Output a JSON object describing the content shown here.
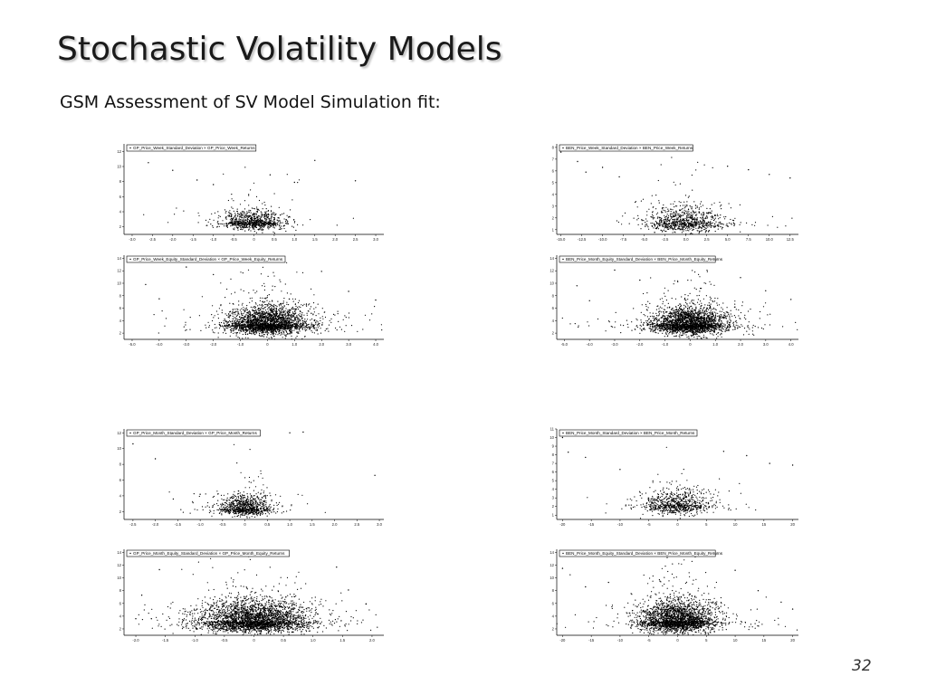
{
  "slide": {
    "title": "Stochastic Volatility Models",
    "subtitle": "GSM Assessment of SV Model Simulation fit:",
    "page_number": "32"
  },
  "chart_data": [
    {
      "type": "scatter",
      "legend": "GP_Price_Week_Standard_Deviation × GP_Price_Week_Returns",
      "x_ticks": [
        "-3.0",
        "-2.5",
        "-2.0",
        "-1.5",
        "-1.0",
        "-0.5",
        "0",
        "0.5",
        "1.0",
        "1.5",
        "2.0",
        "2.5",
        "3.0"
      ],
      "y_ticks": [
        "2",
        "4",
        "6",
        "8",
        "10",
        "12"
      ],
      "xlim": [
        -3.2,
        3.2
      ],
      "ylim": [
        1,
        13
      ],
      "spread_x": 0.38,
      "center_y": 2.6,
      "spread_y": 0.9,
      "n_points": 900,
      "points": [
        [
          -2.6,
          10.5
        ],
        [
          -2.0,
          9.5
        ],
        [
          -1.4,
          8.2
        ],
        [
          -1.0,
          7.6
        ],
        [
          0.4,
          8.9
        ],
        [
          1.0,
          7.9
        ],
        [
          1.5,
          10.8
        ],
        [
          2.5,
          8.1
        ]
      ]
    },
    {
      "type": "scatter",
      "legend": "BEN_Price_Week_Standard_Deviation × BEN_Price_Week_Returns",
      "x_ticks": [
        "-15.0",
        "-12.5",
        "-10.0",
        "-7.5",
        "-5.0",
        "-2.5",
        "0.0",
        "2.5",
        "5.0",
        "7.5",
        "10.0",
        "12.5"
      ],
      "y_ticks": [
        "1",
        "2",
        "3",
        "4",
        "5",
        "6",
        "7",
        "8"
      ],
      "xlim": [
        -15.5,
        13.5
      ],
      "ylim": [
        0.6,
        8.3
      ],
      "spread_x": 2.4,
      "center_y": 1.6,
      "spread_y": 0.8,
      "n_points": 900,
      "points": [
        [
          -15.0,
          7.6
        ],
        [
          -13.0,
          6.8
        ],
        [
          -12.0,
          5.9
        ],
        [
          -10.0,
          6.3
        ],
        [
          -8.0,
          5.5
        ],
        [
          5.0,
          6.4
        ],
        [
          7.5,
          6.1
        ],
        [
          10.0,
          5.7
        ],
        [
          12.5,
          5.4
        ]
      ]
    },
    {
      "type": "scatter",
      "legend": "GP_Price_Week_Equity_Standard_Deviation × GP_Price_Week_Equity_Returns",
      "x_ticks": [
        "-5.0",
        "-4.0",
        "-3.0",
        "-2.0",
        "-1.0",
        "0",
        "1.0",
        "2.0",
        "3.0",
        "4.0"
      ],
      "y_ticks": [
        "2",
        "4",
        "6",
        "8",
        "10",
        "12",
        "14"
      ],
      "xlim": [
        -5.3,
        4.3
      ],
      "ylim": [
        1,
        14.5
      ],
      "spread_x": 0.75,
      "center_y": 3.4,
      "spread_y": 1.5,
      "n_points": 2600,
      "points": [
        [
          -4.5,
          9.8
        ],
        [
          -4.0,
          7.5
        ],
        [
          -3.0,
          12.6
        ],
        [
          -2.0,
          11.4
        ],
        [
          2.0,
          11.9
        ],
        [
          3.0,
          8.7
        ],
        [
          4.0,
          7.3
        ]
      ]
    },
    {
      "type": "scatter",
      "legend": "BEN_Price_Month_Equity_Standard_Deviation × BEN_Price_Month_Equity_Returns",
      "x_ticks": [
        "-5.0",
        "-4.0",
        "-3.0",
        "-2.0",
        "-1.0",
        "0",
        "1.0",
        "2.0",
        "3.0",
        "4.0"
      ],
      "y_ticks": [
        "2",
        "4",
        "6",
        "8",
        "10",
        "12",
        "14"
      ],
      "xlim": [
        -5.3,
        4.3
      ],
      "ylim": [
        1,
        14.5
      ],
      "spread_x": 0.75,
      "center_y": 3.4,
      "spread_y": 1.5,
      "n_points": 2600,
      "points": [
        [
          -4.5,
          9.6
        ],
        [
          -4.0,
          7.2
        ],
        [
          -3.0,
          12.1
        ],
        [
          -2.0,
          10.5
        ],
        [
          2.0,
          10.9
        ],
        [
          3.0,
          8.8
        ],
        [
          4.0,
          7.4
        ]
      ]
    },
    {
      "type": "scatter",
      "legend": "GP_Price_Month_Standard_Deviation × GP_Price_Month_Returns",
      "x_ticks": [
        "-2.5",
        "-2.0",
        "-1.5",
        "-1.0",
        "-0.5",
        "0",
        "0.5",
        "1.0",
        "1.5",
        "2.0",
        "2.5",
        "3.0"
      ],
      "y_ticks": [
        "2",
        "4",
        "6",
        "8",
        "10",
        "12"
      ],
      "xlim": [
        -2.7,
        3.1
      ],
      "ylim": [
        1,
        12.5
      ],
      "spread_x": 0.3,
      "center_y": 2.4,
      "spread_y": 0.9,
      "n_points": 900,
      "points": [
        [
          -2.5,
          10.6
        ],
        [
          -2.0,
          8.7
        ],
        [
          -1.6,
          3.6
        ],
        [
          -1.0,
          4.2
        ],
        [
          1.0,
          12.0
        ],
        [
          1.3,
          12.1
        ],
        [
          2.9,
          6.6
        ]
      ]
    },
    {
      "type": "scatter",
      "legend": "BEN_Price_Month_Standard_Deviation × BEN_Price_Month_Returns",
      "x_ticks": [
        "-20",
        "-15",
        "-10",
        "-5",
        "0",
        "5",
        "10",
        "15",
        "20"
      ],
      "y_ticks": [
        "1",
        "2",
        "3",
        "4",
        "5",
        "6",
        "7",
        "8",
        "9",
        "10",
        "11"
      ],
      "xlim": [
        -21,
        21
      ],
      "ylim": [
        0.5,
        11
      ],
      "spread_x": 3.0,
      "center_y": 2.2,
      "spread_y": 1.0,
      "n_points": 800,
      "points": [
        [
          -20,
          10.0
        ],
        [
          -19,
          8.3
        ],
        [
          -16,
          7.7
        ],
        [
          -10,
          6.3
        ],
        [
          8,
          8.4
        ],
        [
          12,
          7.9
        ],
        [
          16,
          7.0
        ],
        [
          20,
          6.8
        ]
      ]
    },
    {
      "type": "scatter",
      "legend": "GP_Price_Month_Equity_Standard_Deviation × GP_Price_Month_Equity_Returns",
      "x_ticks": [
        "-2.0",
        "-1.5",
        "-1.0",
        "-0.5",
        "0",
        "0.5",
        "1.0",
        "1.5",
        "2.0"
      ],
      "y_ticks": [
        "2",
        "4",
        "6",
        "8",
        "10",
        "12",
        "14"
      ],
      "xlim": [
        -2.2,
        2.2
      ],
      "ylim": [
        1,
        14.5
      ],
      "spread_x": 0.45,
      "center_y": 3.2,
      "spread_y": 1.7,
      "n_points": 3200,
      "points": [
        [
          -2.0,
          3.6
        ],
        [
          -1.9,
          7.3
        ],
        [
          -1.6,
          11.3
        ],
        [
          1.4,
          11.7
        ],
        [
          1.6,
          8.1
        ],
        [
          1.9,
          5.9
        ]
      ]
    },
    {
      "type": "scatter",
      "legend": "BEN_Price_Month_Equity_Standard_Deviation × BEN_Price_Month_Equity_Returns",
      "x_ticks": [
        "-20",
        "-15",
        "-10",
        "-5",
        "0",
        "5",
        "10",
        "15",
        "20"
      ],
      "y_ticks": [
        "2",
        "4",
        "6",
        "8",
        "10",
        "12",
        "14"
      ],
      "xlim": [
        -21,
        21
      ],
      "ylim": [
        1,
        14.5
      ],
      "spread_x": 3.2,
      "center_y": 3.2,
      "spread_y": 1.6,
      "n_points": 2600,
      "points": [
        [
          -20,
          11.5
        ],
        [
          -16,
          8.6
        ],
        [
          -12,
          9.3
        ],
        [
          10,
          11.2
        ],
        [
          14,
          8.0
        ],
        [
          18,
          6.2
        ],
        [
          20,
          5.1
        ]
      ]
    }
  ]
}
